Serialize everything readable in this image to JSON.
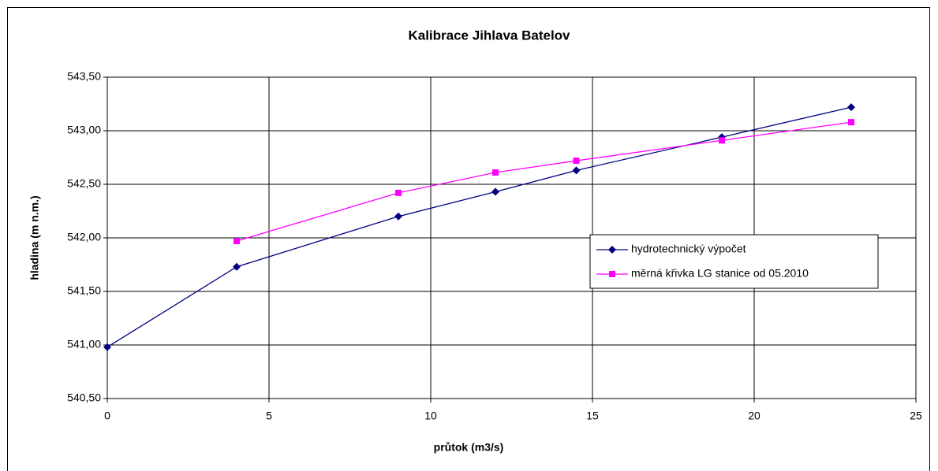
{
  "chart_data": {
    "type": "line",
    "title": "Kalibrace Jihlava Batelov",
    "xlabel": "průtok (m3/s)",
    "ylabel": "hladina (m n.m.)",
    "xlim": [
      0,
      25
    ],
    "xticks": [
      0,
      5,
      10,
      15,
      20,
      25
    ],
    "ylim": [
      540.5,
      543.5
    ],
    "yticks": [
      {
        "value": 540.5,
        "label": "540,50"
      },
      {
        "value": 541,
        "label": "541,00"
      },
      {
        "value": 541.5,
        "label": "541,50"
      },
      {
        "value": 542,
        "label": "542,00"
      },
      {
        "value": 542.5,
        "label": "542,50"
      },
      {
        "value": 543,
        "label": "543,00"
      },
      {
        "value": 543.5,
        "label": "543,50"
      }
    ],
    "grid": true,
    "legend_position": "right",
    "series": [
      {
        "name": "hydrotechnický výpočet",
        "color": "#000080",
        "marker": "diamond",
        "x": [
          0,
          4,
          9,
          12,
          14.5,
          19,
          23
        ],
        "values": [
          540.98,
          541.73,
          542.2,
          542.43,
          542.63,
          542.94,
          543.22
        ]
      },
      {
        "name": "měrná křivka LG stanice od 05.2010",
        "color": "#ff00ff",
        "marker": "square",
        "x": [
          4,
          9,
          12,
          14.5,
          19,
          23
        ],
        "values": [
          541.97,
          542.42,
          542.61,
          542.72,
          542.91,
          543.08
        ]
      }
    ]
  }
}
